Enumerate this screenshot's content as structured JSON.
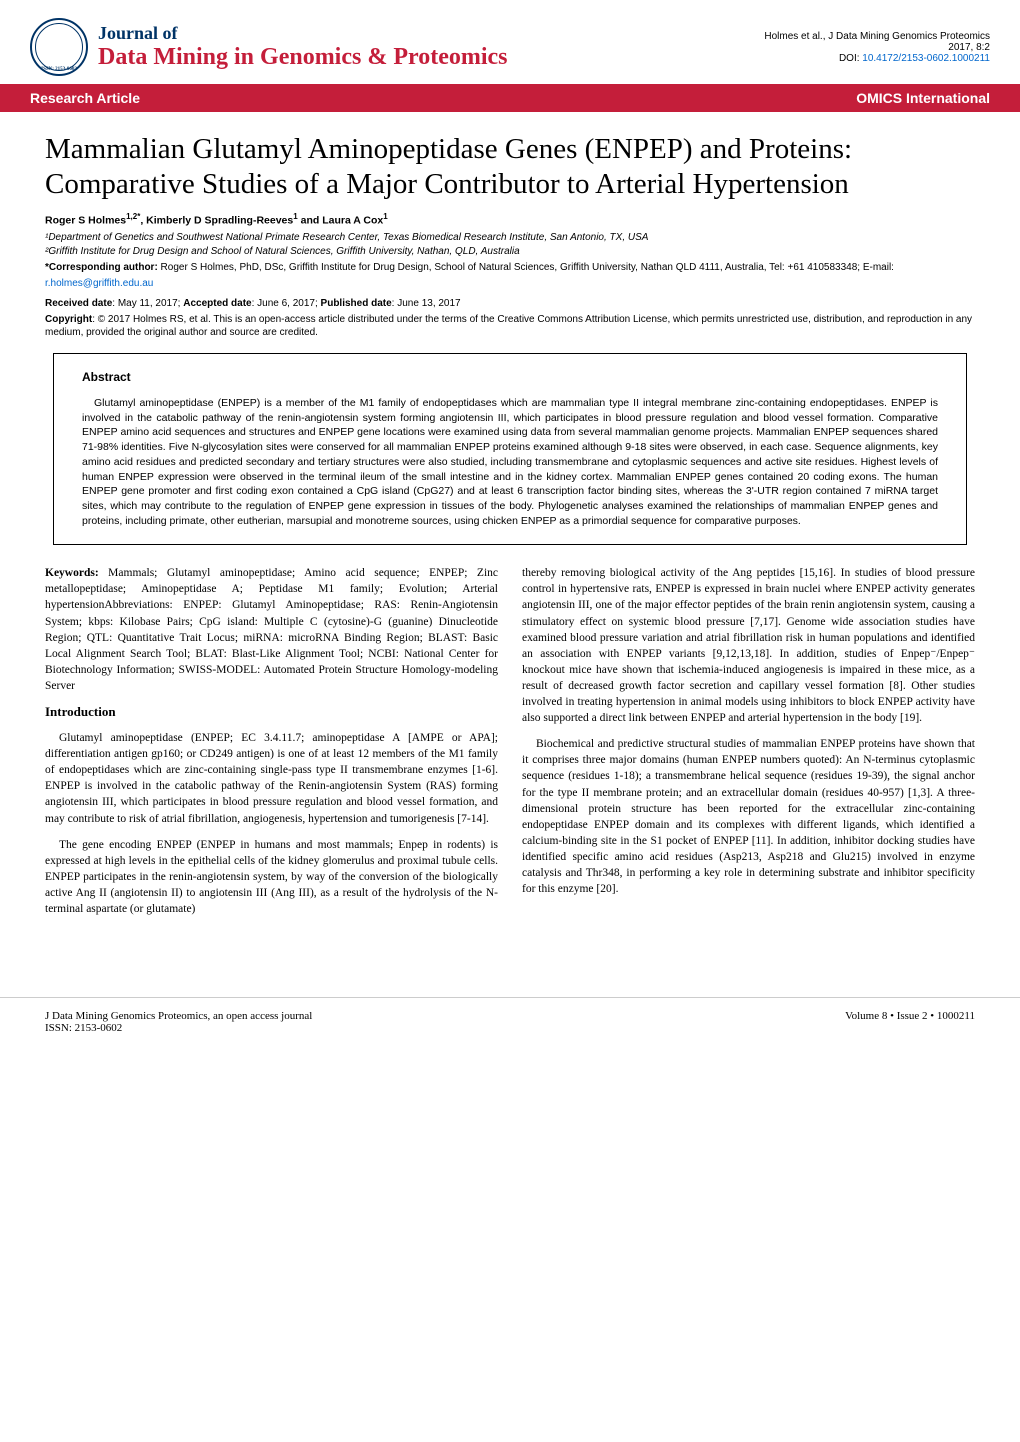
{
  "header": {
    "journal_of": "Journal of",
    "journal_title": "Data Mining in Genomics & Proteomics",
    "issn": "ISSN: 2153-0602",
    "citation_line1": "Holmes et al., J Data Mining Genomics Proteomics",
    "citation_line2": "2017, 8:2",
    "doi_label": "DOI: ",
    "doi_value": "10.4172/2153-0602.1000211"
  },
  "section_bar": {
    "left": "Research Article",
    "right": "OMICS International"
  },
  "article": {
    "title": "Mammalian Glutamyl Aminopeptidase Genes (ENPEP) and Proteins: Comparative Studies of a Major Contributor to Arterial Hypertension",
    "authors_html": "Roger S Holmes<sup>1,2*</sup>, Kimberly D Spradling-Reeves<sup>1</sup> and Laura A Cox<sup>1</sup>",
    "affiliation1": "¹Department of Genetics and Southwest National Primate Research Center, Texas Biomedical Research Institute, San Antonio, TX, USA",
    "affiliation2": "²Griffith Institute for Drug Design and School of Natural Sciences, Griffith University, Nathan, QLD, Australia",
    "corresponding_label": "*Corresponding author:",
    "corresponding_text": " Roger S Holmes, PhD, DSc, Griffith Institute for Drug Design, School of Natural Sciences, Griffith University, Nathan QLD 4111, Australia, Tel: +61 410583348; E-mail: ",
    "email": "r.holmes@griffith.edu.au",
    "dates_html": "<strong>Received date</strong>: May 11, 2017; <strong>Accepted date</strong>: June 6, 2017; <strong>Published date</strong>: June 13, 2017",
    "copyright_html": "<strong>Copyright</strong>: © 2017 Holmes RS, et al. This is an open-access article distributed under the terms of the Creative Commons Attribution License, which permits unrestricted use, distribution, and reproduction in any medium, provided the original author and source are credited."
  },
  "abstract": {
    "heading": "Abstract",
    "text": "Glutamyl aminopeptidase (ENPEP) is a member of the M1 family of endopeptidases which are mammalian type II integral membrane zinc-containing endopeptidases. ENPEP is involved in the catabolic pathway of the renin-angiotensin system forming angiotensin III, which participates in blood pressure regulation and blood vessel formation. Comparative ENPEP amino acid sequences and structures and ENPEP gene locations were examined using data from several mammalian genome projects. Mammalian ENPEP sequences shared 71-98% identities. Five N-glycosylation sites were conserved for all mammalian ENPEP proteins examined although 9-18 sites were observed, in each case. Sequence alignments, key amino acid residues and predicted secondary and tertiary structures were also studied, including transmembrane and cytoplasmic sequences and active site residues. Highest levels of human ENPEP expression were observed in the terminal ileum of the small intestine and in the kidney cortex. Mammalian ENPEP genes contained 20 coding exons. The human ENPEP gene promoter and first coding exon contained a CpG island (CpG27) and at least 6 transcription factor binding sites, whereas the 3'-UTR region contained 7 miRNA target sites, which may contribute to the regulation of ENPEP gene expression in tissues of the body. Phylogenetic analyses examined the relationships of mammalian ENPEP genes and proteins, including primate, other eutherian, marsupial and monotreme sources, using chicken ENPEP as a primordial sequence for comparative purposes."
  },
  "body": {
    "keywords_label": "Keywords:",
    "keywords_text": " Mammals; Glutamyl aminopeptidase; Amino acid sequence; ENPEP; Zinc metallopeptidase; Aminopeptidase A; Peptidase M1 family; Evolution; Arterial hypertensionAbbreviations: ENPEP: Glutamyl Aminopeptidase; RAS: Renin-Angiotensin System; kbps: Kilobase Pairs; CpG island: Multiple C (cytosine)-G (guanine) Dinucleotide Region; QTL: Quantitative Trait Locus; miRNA: microRNA Binding Region; BLAST: Basic Local Alignment Search Tool; BLAT: Blast-Like Alignment Tool; NCBI: National Center for Biotechnology Information; SWISS-MODEL: Automated Protein Structure Homology-modeling Server",
    "introduction_heading": "Introduction",
    "intro_p1": "Glutamyl aminopeptidase (ENPEP; EC 3.4.11.7; aminopeptidase A [AMPE or APA]; differentiation antigen gp160; or CD249 antigen) is one of at least 12 members of the M1 family of endopeptidases which are zinc-containing single-pass type II transmembrane enzymes [1-6]. ENPEP is involved in the catabolic pathway of the Renin-angiotensin System (RAS) forming angiotensin III, which participates in blood pressure regulation and blood vessel formation, and may contribute to risk of atrial fibrillation, angiogenesis, hypertension and tumorigenesis [7-14].",
    "intro_p2": "The gene encoding ENPEP (ENPEP in humans and most mammals; Enpep in rodents) is expressed at high levels in the epithelial cells of the kidney glomerulus and proximal tubule cells. ENPEP participates in the renin-angiotensin system, by way of the conversion of the biologically active Ang II (angiotensin II) to angiotensin III (Ang III), as a result of the hydrolysis of the N-terminal aspartate (or glutamate)",
    "col2_p1": "thereby removing biological activity of the Ang peptides [15,16]. In studies of blood pressure control in hypertensive rats, ENPEP is expressed in brain nuclei where ENPEP activity generates angiotensin III, one of the major effector peptides of the brain renin angiotensin system, causing a stimulatory effect on systemic blood pressure [7,17]. Genome wide association studies have examined blood pressure variation and atrial fibrillation risk in human populations and identified an association with ENPEP variants [9,12,13,18]. In addition, studies of Enpep⁻/Enpep⁻ knockout mice have shown that ischemia-induced angiogenesis is impaired in these mice, as a result of decreased growth factor secretion and capillary vessel formation [8]. Other studies involved in treating hypertension in animal models using inhibitors to block ENPEP activity have also supported a direct link between ENPEP and arterial hypertension in the body [19].",
    "col2_p2": "Biochemical and predictive structural studies of mammalian ENPEP proteins have shown that it comprises three major domains (human ENPEP numbers quoted): An N-terminus cytoplasmic sequence (residues 1-18); a transmembrane helical sequence (residues 19-39), the signal anchor for the type II membrane protein; and an extracellular domain (residues 40-957) [1,3]. A three-dimensional protein structure has been reported for the extracellular zinc-containing endopeptidase ENPEP domain and its complexes with different ligands, which identified a calcium-binding site in the S1 pocket of ENPEP [11]. In addition, inhibitor docking studies have identified specific amino acid residues (Asp213, Asp218 and Glu215) involved in enzyme catalysis and Thr348, in performing a key role in determining substrate and inhibitor specificity for this enzyme [20]."
  },
  "footer": {
    "left_line1": "J Data Mining Genomics Proteomics, an open access journal",
    "left_line2": "ISSN: 2153-0602",
    "right": "Volume 8 • Issue 2 • 1000211"
  }
}
